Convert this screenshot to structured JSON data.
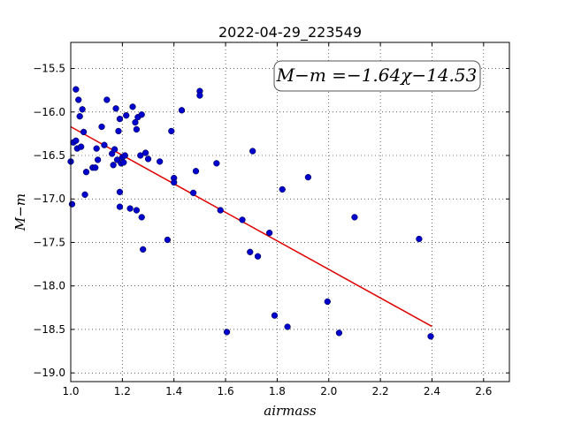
{
  "chart_data": {
    "type": "scatter",
    "title": "2022-04-29_223549",
    "xlabel": "airmass",
    "ylabel": "M−m",
    "xlim": [
      1.0,
      2.7
    ],
    "ylim": [
      -19.1,
      -15.2
    ],
    "x_ticks": [
      1.0,
      1.2,
      1.4,
      1.6,
      1.8,
      2.0,
      2.2,
      2.4,
      2.6
    ],
    "x_tick_labels": [
      "1.0",
      "1.2",
      "1.4",
      "1.6",
      "1.8",
      "2.0",
      "2.2",
      "2.4",
      "2.6"
    ],
    "y_ticks": [
      -15.5,
      -16.0,
      -16.5,
      -17.0,
      -17.5,
      -18.0,
      -18.5,
      -19.0
    ],
    "y_tick_labels": [
      "−15.5",
      "−16.0",
      "−16.5",
      "−17.0",
      "−17.5",
      "−18.0",
      "−18.5",
      "−19.0"
    ],
    "grid": true,
    "annotation": "M−m =−1.64χ−14.53",
    "colors": {
      "points": "#0000cc",
      "fit_line": "#dd0000"
    },
    "fit": {
      "slope": -1.64,
      "intercept": -14.53,
      "x_range": [
        1.0,
        2.4
      ]
    },
    "points": [
      {
        "x": 1.0,
        "y": -16.57
      },
      {
        "x": 1.005,
        "y": -17.06
      },
      {
        "x": 1.01,
        "y": -16.35
      },
      {
        "x": 1.02,
        "y": -16.33
      },
      {
        "x": 1.025,
        "y": -16.42
      },
      {
        "x": 1.02,
        "y": -15.74
      },
      {
        "x": 1.03,
        "y": -15.86
      },
      {
        "x": 1.035,
        "y": -16.05
      },
      {
        "x": 1.04,
        "y": -16.4
      },
      {
        "x": 1.045,
        "y": -15.97
      },
      {
        "x": 1.05,
        "y": -16.23
      },
      {
        "x": 1.055,
        "y": -16.95
      },
      {
        "x": 1.06,
        "y": -16.69
      },
      {
        "x": 1.085,
        "y": -16.64
      },
      {
        "x": 1.095,
        "y": -16.64
      },
      {
        "x": 1.1,
        "y": -16.42
      },
      {
        "x": 1.105,
        "y": -16.55
      },
      {
        "x": 1.12,
        "y": -16.17
      },
      {
        "x": 1.13,
        "y": -16.38
      },
      {
        "x": 1.14,
        "y": -15.86
      },
      {
        "x": 1.16,
        "y": -16.48
      },
      {
        "x": 1.165,
        "y": -16.61
      },
      {
        "x": 1.17,
        "y": -16.43
      },
      {
        "x": 1.175,
        "y": -15.96
      },
      {
        "x": 1.18,
        "y": -16.55
      },
      {
        "x": 1.185,
        "y": -16.22
      },
      {
        "x": 1.19,
        "y": -16.08
      },
      {
        "x": 1.19,
        "y": -16.92
      },
      {
        "x": 1.19,
        "y": -17.09
      },
      {
        "x": 1.195,
        "y": -16.59
      },
      {
        "x": 1.2,
        "y": -16.52
      },
      {
        "x": 1.205,
        "y": -16.58
      },
      {
        "x": 1.21,
        "y": -16.5
      },
      {
        "x": 1.215,
        "y": -16.04
      },
      {
        "x": 1.23,
        "y": -17.11
      },
      {
        "x": 1.24,
        "y": -15.94
      },
      {
        "x": 1.25,
        "y": -16.12
      },
      {
        "x": 1.255,
        "y": -16.2
      },
      {
        "x": 1.255,
        "y": -17.13
      },
      {
        "x": 1.26,
        "y": -16.06
      },
      {
        "x": 1.27,
        "y": -16.5
      },
      {
        "x": 1.275,
        "y": -16.03
      },
      {
        "x": 1.275,
        "y": -17.21
      },
      {
        "x": 1.28,
        "y": -17.58
      },
      {
        "x": 1.29,
        "y": -16.47
      },
      {
        "x": 1.3,
        "y": -16.54
      },
      {
        "x": 1.345,
        "y": -16.57
      },
      {
        "x": 1.375,
        "y": -17.47
      },
      {
        "x": 1.39,
        "y": -16.22
      },
      {
        "x": 1.4,
        "y": -16.76
      },
      {
        "x": 1.4,
        "y": -16.81
      },
      {
        "x": 1.43,
        "y": -15.98
      },
      {
        "x": 1.475,
        "y": -16.93
      },
      {
        "x": 1.485,
        "y": -16.68
      },
      {
        "x": 1.5,
        "y": -15.76
      },
      {
        "x": 1.5,
        "y": -15.81
      },
      {
        "x": 1.565,
        "y": -16.59
      },
      {
        "x": 1.58,
        "y": -17.13
      },
      {
        "x": 1.605,
        "y": -18.53
      },
      {
        "x": 1.665,
        "y": -17.24
      },
      {
        "x": 1.695,
        "y": -17.61
      },
      {
        "x": 1.705,
        "y": -16.45
      },
      {
        "x": 1.725,
        "y": -17.66
      },
      {
        "x": 1.77,
        "y": -17.39
      },
      {
        "x": 1.79,
        "y": -18.34
      },
      {
        "x": 1.82,
        "y": -16.89
      },
      {
        "x": 1.84,
        "y": -18.47
      },
      {
        "x": 1.92,
        "y": -16.75
      },
      {
        "x": 1.995,
        "y": -18.18
      },
      {
        "x": 2.04,
        "y": -18.54
      },
      {
        "x": 2.1,
        "y": -17.21
      },
      {
        "x": 2.35,
        "y": -17.46
      },
      {
        "x": 2.395,
        "y": -18.58
      }
    ]
  }
}
